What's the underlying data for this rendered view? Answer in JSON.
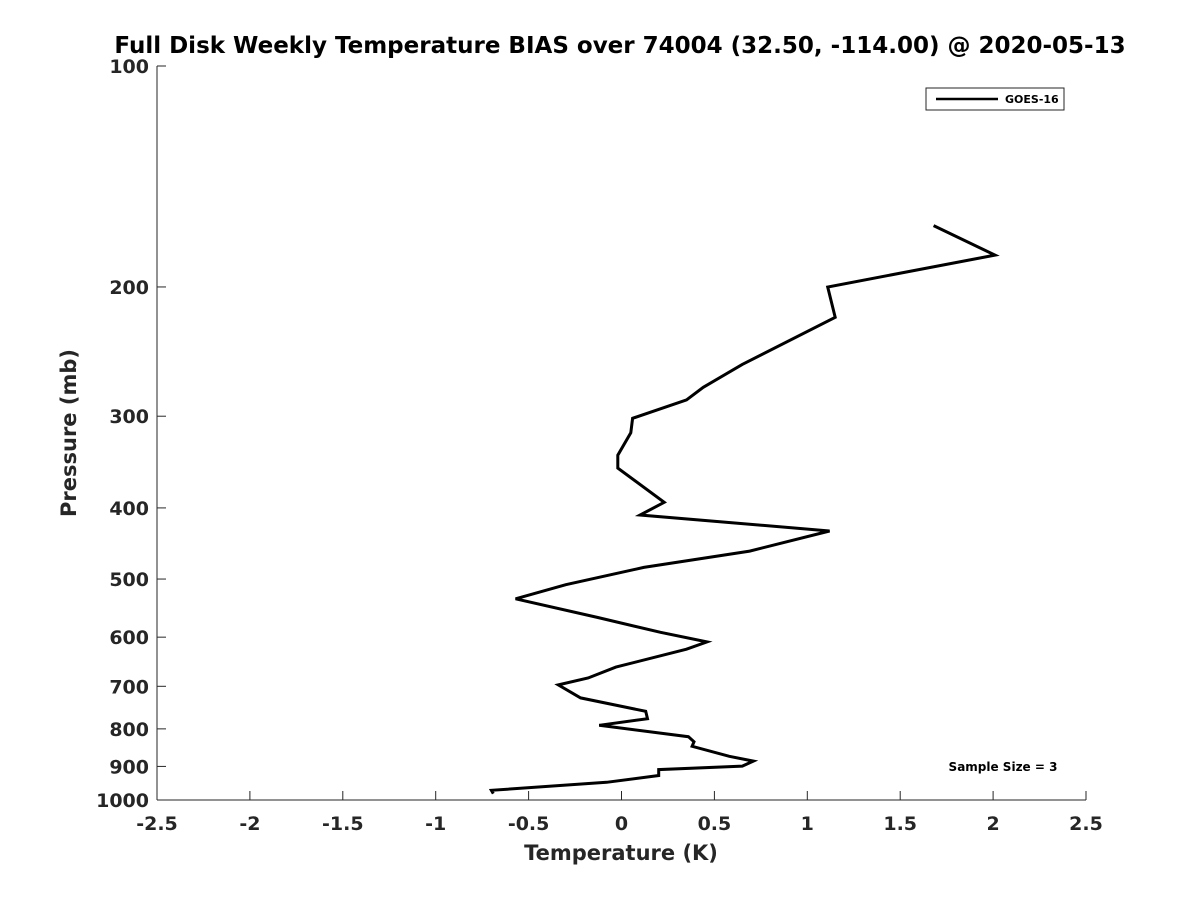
{
  "chart_data": {
    "type": "line",
    "title": "Full Disk Weekly Temperature BIAS over 74004 (32.50, -114.00) @ 2020-05-13",
    "xlabel": "Temperature (K)",
    "ylabel": "Pressure (mb)",
    "xlim": [
      -2.5,
      2.5
    ],
    "ylim": [
      100,
      1000
    ],
    "y_scale": "log",
    "y_reversed": true,
    "grid": false,
    "x_ticks": [
      -2.5,
      -2,
      -1.5,
      -1,
      -0.5,
      0,
      0.5,
      1,
      1.5,
      2,
      2.5
    ],
    "x_tick_labels": [
      "-2.5",
      "-2",
      "-1.5",
      "-1",
      "-0.5",
      "0",
      "0.5",
      "1",
      "1.5",
      "2",
      "2.5"
    ],
    "y_ticks": [
      100,
      200,
      300,
      400,
      500,
      600,
      700,
      800,
      900,
      1000
    ],
    "y_tick_labels": [
      "100",
      "200",
      "300",
      "400",
      "500",
      "600",
      "700",
      "800",
      "900",
      "1000"
    ],
    "legend": {
      "placement": "top-right",
      "entries": [
        "GOES-16"
      ]
    },
    "annotation": "Sample Size = 3",
    "series": [
      {
        "name": "GOES-16",
        "color": "#000000",
        "x": [
          1.68,
          2.01,
          1.11,
          1.15,
          0.65,
          0.44,
          0.35,
          0.06,
          0.05,
          -0.02,
          -0.02,
          0.23,
          0.1,
          1.12,
          0.69,
          0.12,
          -0.3,
          -0.57,
          -0.13,
          0.21,
          0.46,
          0.35,
          -0.03,
          -0.18,
          -0.34,
          -0.22,
          0.13,
          0.14,
          -0.12,
          0.36,
          0.39,
          0.38,
          0.58,
          0.71,
          0.65,
          0.2,
          0.2,
          -0.08,
          -0.7,
          -0.69
        ],
        "y": [
          165,
          181,
          200,
          220,
          255,
          274,
          285,
          302,
          316,
          339,
          353,
          393,
          409,
          430,
          458,
          482,
          509,
          532,
          564,
          591,
          609,
          623,
          659,
          682,
          697,
          726,
          757,
          775,
          791,
          820,
          833,
          845,
          872,
          885,
          899,
          909,
          926,
          946,
          970,
          980
        ]
      }
    ]
  }
}
